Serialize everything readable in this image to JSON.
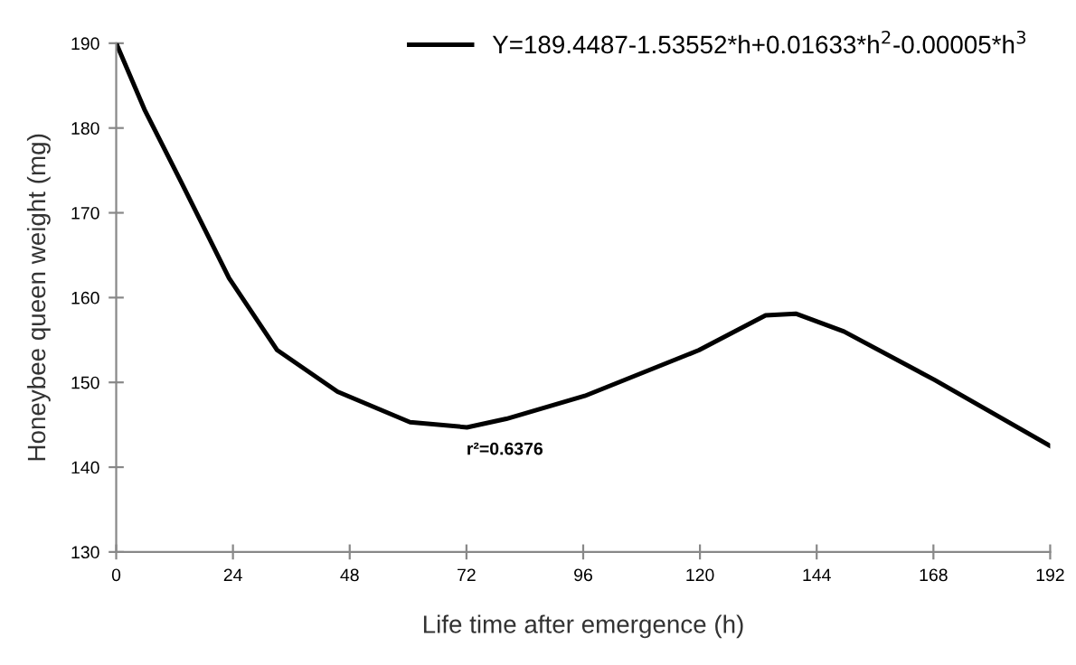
{
  "chart_data": {
    "type": "line",
    "xlabel": "Life time after emergence (h)",
    "ylabel": "Honeybee queen weight (mg)",
    "annotations": [
      "r²=0.6376"
    ],
    "series": [
      {
        "name": "Y=189.4487-1.53552*h+0.01633*h$^{2}$-0.00005*h$^{3}$",
        "color": "#000000",
        "x": [
          0,
          5.8,
          13.3,
          23.2,
          33.1,
          45.5,
          60.4,
          72.1,
          80.2,
          96.3,
          119.8,
          133.5,
          139.7,
          149.6,
          168.2,
          192
        ],
        "values": [
          190,
          182.2,
          173.7,
          162.3,
          153.8,
          148.9,
          145.3,
          144.7,
          145.7,
          148.4,
          153.8,
          157.9,
          158.1,
          156.0,
          150.3,
          142.5
        ]
      }
    ],
    "xlim": [
      0,
      192
    ],
    "xticks": [
      0,
      24,
      48,
      72,
      96,
      120,
      144,
      168,
      192
    ],
    "ylim": [
      130,
      190
    ],
    "yticks": [
      130,
      140,
      150,
      160,
      170,
      180,
      190
    ],
    "grid": false,
    "legend": "top right",
    "marker": "none",
    "line_style": "solid"
  }
}
